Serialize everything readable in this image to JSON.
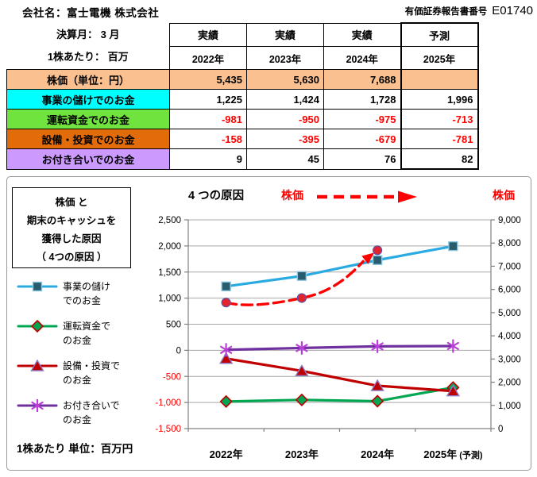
{
  "header": {
    "company": "会社名：富士電機 株式会社",
    "report_label": "有価証券報告書番号",
    "report_number": "E01740"
  },
  "table": {
    "meta_line1": "決算月： 3 月",
    "meta_line2": "1株あたり： 百万",
    "col_headers": [
      {
        "type": "実績",
        "year": "2022年"
      },
      {
        "type": "実績",
        "year": "2023年"
      },
      {
        "type": "実績",
        "year": "2024年"
      },
      {
        "type": "予測",
        "year": "2025年"
      }
    ],
    "rows": [
      {
        "label": "株価（単位：円）",
        "color": "#FAC090",
        "values": [
          "5,435",
          "5,630",
          "7,688",
          ""
        ]
      },
      {
        "label": "事業の儲けでのお金",
        "color": "#00FFFF",
        "values": [
          "1,225",
          "1,424",
          "1,728",
          "1,996"
        ]
      },
      {
        "label": "運転資金でのお金",
        "color": "#70E33E",
        "values": [
          "-981",
          "-950",
          "-975",
          "-713"
        ]
      },
      {
        "label": "設備・投資でのお金",
        "color": "#E36C0A",
        "values": [
          "-158",
          "-395",
          "-679",
          "-781"
        ]
      },
      {
        "label": "お付き合いでのお金",
        "color": "#CC99FF",
        "values": [
          "9",
          "45",
          "76",
          "82"
        ]
      }
    ],
    "negative_color": "#FF0000"
  },
  "chart": {
    "box_title_lines": [
      "株価 と",
      "期末のキャッシュを",
      "獲得した原因",
      "（ 4つの原因 ）"
    ],
    "title": "4 つの原因",
    "price_label_left": "株価",
    "price_label_right": "株価",
    "footnote": "1株あたり 単位：百万円",
    "legend": [
      {
        "line1": "事業の儲け",
        "line2": "でのお金"
      },
      {
        "line1": "運転資金で",
        "line2": "のお金"
      },
      {
        "line1": "設備・投資で",
        "line2": "のお金"
      },
      {
        "line1": "お付き合いで",
        "line2": "のお金"
      }
    ]
  },
  "chart_data": {
    "type": "line",
    "categories": [
      "2022年",
      "2023年",
      "2024年",
      "2025年 (予測)"
    ],
    "series": [
      {
        "name": "事業の儲けでのお金",
        "axis": "left",
        "color": "#29ABE2",
        "marker": "square",
        "marker_fill": "#265C6E",
        "marker_stroke": "#8DC6E0",
        "values": [
          1225,
          1424,
          1728,
          1996
        ]
      },
      {
        "name": "運転資金でのお金",
        "axis": "left",
        "color": "#00A651",
        "marker": "diamond",
        "marker_fill": "#00A651",
        "marker_stroke": "#C00000",
        "values": [
          -981,
          -950,
          -975,
          -713
        ]
      },
      {
        "name": "設備・投資でのお金",
        "axis": "left",
        "color": "#C00000",
        "marker": "triangle",
        "marker_fill": "#C00000",
        "marker_stroke": "#8B7CC8",
        "values": [
          -158,
          -395,
          -679,
          -781
        ]
      },
      {
        "name": "お付き合いでのお金",
        "axis": "left",
        "color": "#7030A0",
        "marker": "asterisk",
        "marker_fill": "#B93FD6",
        "marker_stroke": "#B93FD6",
        "values": [
          9,
          45,
          76,
          82
        ]
      },
      {
        "name": "株価",
        "axis": "right",
        "color": "#FF0000",
        "marker": "circle",
        "dashed": true,
        "arrow": true,
        "marker_fill": "#E32330",
        "marker_stroke": "#5B54A8",
        "values": [
          5435,
          5630,
          7688,
          null
        ]
      }
    ],
    "left_axis": {
      "min": -1500,
      "max": 2500,
      "step": 500,
      "labels": [
        "2,500",
        "2,000",
        "1,500",
        "1,000",
        "500",
        "0",
        "-500",
        "-1,000",
        "-1,500"
      ],
      "negative_label_color": "#FF0000"
    },
    "right_axis": {
      "min": 0,
      "max": 9000,
      "step": 1000,
      "labels": [
        "9,000",
        "8,000",
        "7,000",
        "6,000",
        "5,000",
        "4,000",
        "3,000",
        "2,000",
        "1,000",
        "0"
      ]
    },
    "grid": true,
    "legend_position": "left"
  }
}
